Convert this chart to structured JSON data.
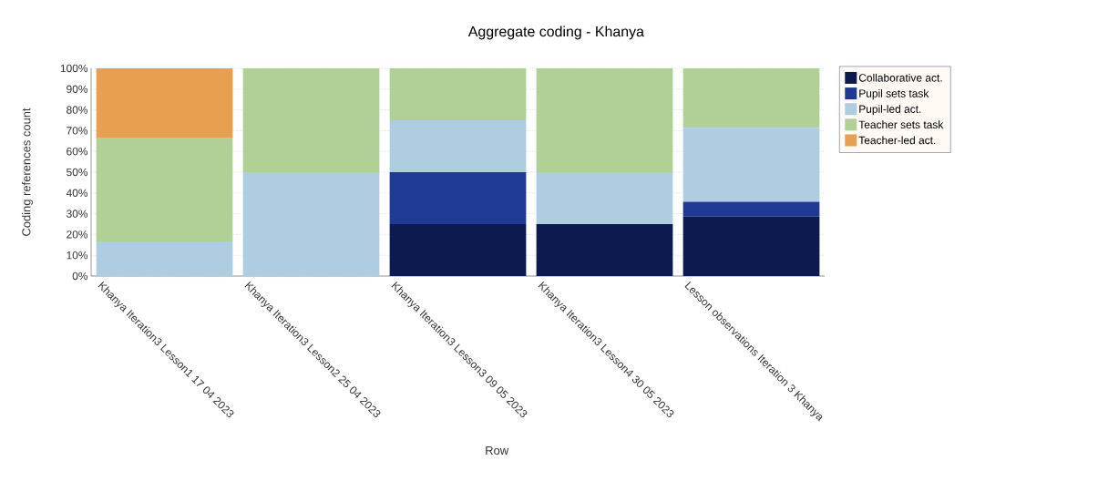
{
  "chart_data": {
    "type": "bar",
    "title": "Aggregate coding - Khanya",
    "xlabel": "Row",
    "ylabel": "Coding references count",
    "categories": [
      "Khanya Iteration3 Lesson1 17 04 2023",
      "Khanya Iteration3 Lesson2 25 04 2023",
      "Khanya Iteration3 Lesson3 09 05 2023",
      "Khanya Iteration3 Lesson4 30 05 2023",
      "Lesson observations Iteration 3 Khanya"
    ],
    "stacked": true,
    "series": [
      {
        "name": "Collaborative act.",
        "color": "#0d1a4f",
        "values": [
          0,
          0,
          25,
          25,
          28.6
        ]
      },
      {
        "name": "Pupil sets task",
        "color": "#1f3a93",
        "values": [
          0,
          0,
          25,
          0,
          7.1
        ]
      },
      {
        "name": "Pupil-led act.",
        "color": "#aecde0",
        "values": [
          16.7,
          50,
          25,
          25,
          35.7
        ]
      },
      {
        "name": "Teacher sets task",
        "color": "#b0d095",
        "values": [
          50,
          50,
          25,
          50,
          28.6
        ]
      },
      {
        "name": "Teacher-led act.",
        "color": "#e8a050",
        "values": [
          33.3,
          0,
          0,
          0,
          0
        ]
      }
    ],
    "ylim": [
      0,
      100
    ],
    "yticks": [
      {
        "value": 0,
        "label": "0%"
      },
      {
        "value": 10,
        "label": "10%"
      },
      {
        "value": 20,
        "label": "20%"
      },
      {
        "value": 30,
        "label": "30%"
      },
      {
        "value": 40,
        "label": "40%"
      },
      {
        "value": 50,
        "label": "50%"
      },
      {
        "value": 60,
        "label": "60%"
      },
      {
        "value": 70,
        "label": "70%"
      },
      {
        "value": 80,
        "label": "80%"
      },
      {
        "value": 90,
        "label": "90%"
      },
      {
        "value": 100,
        "label": "100%"
      }
    ],
    "grid": "y",
    "legend": "right"
  }
}
